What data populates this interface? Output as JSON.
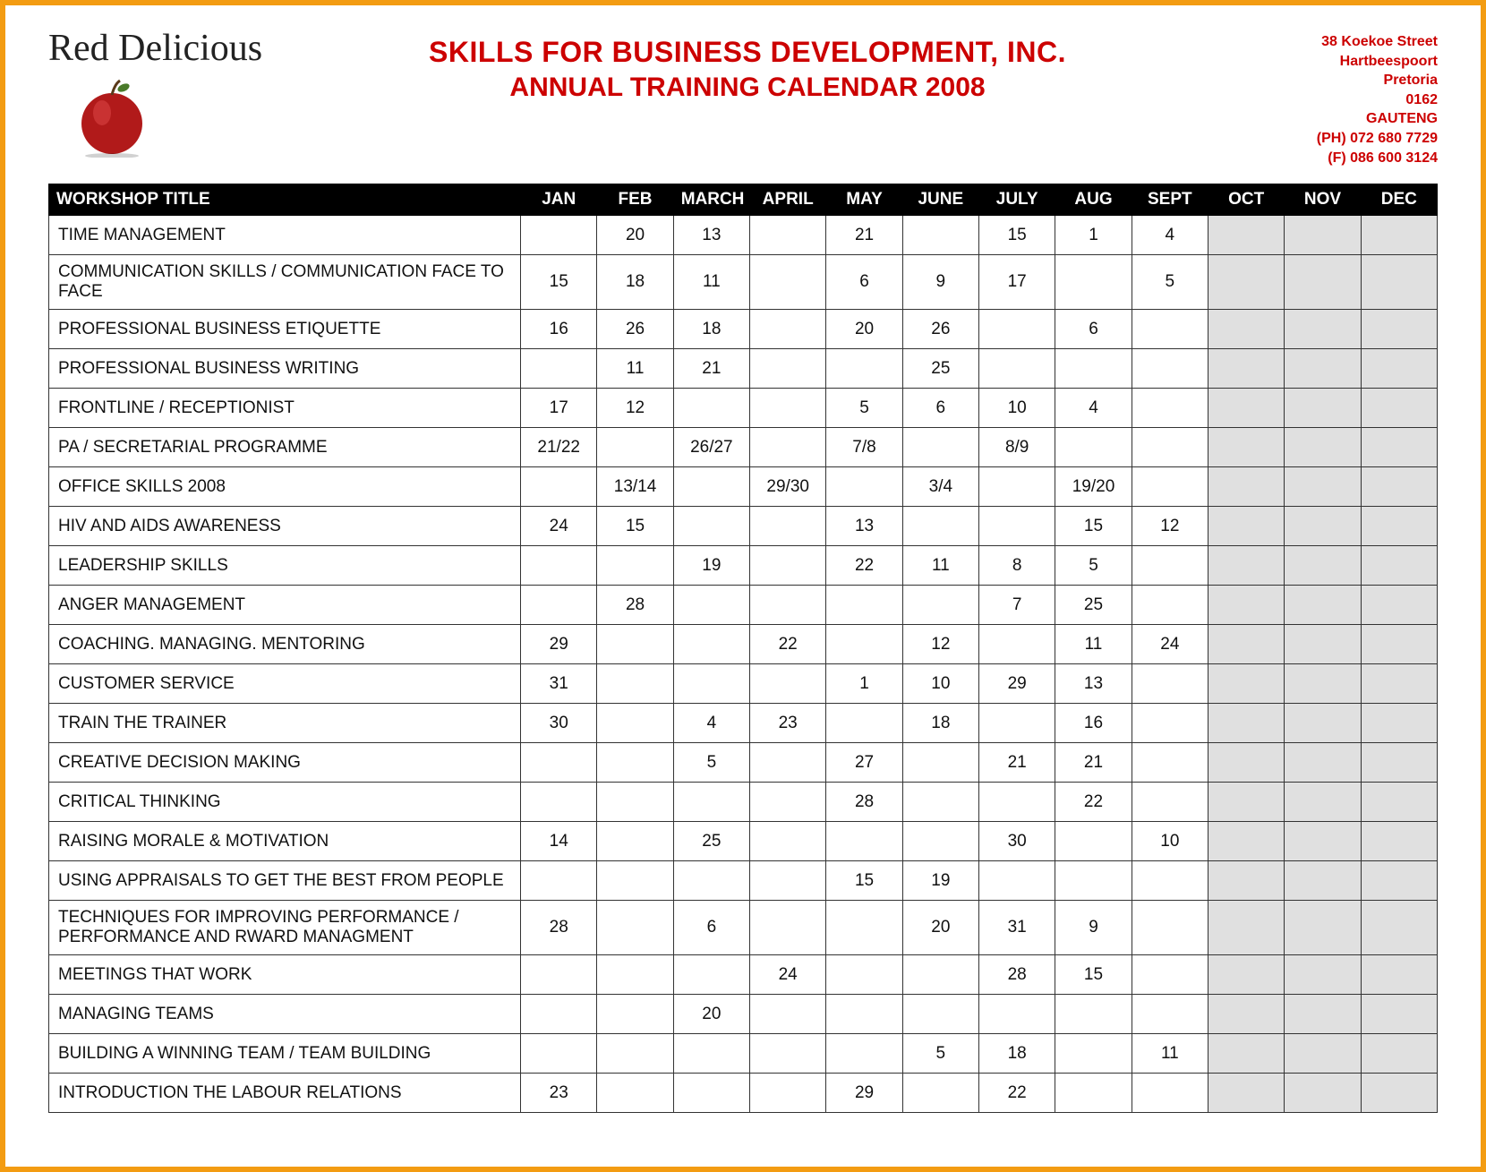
{
  "brand": "Red Delicious",
  "header": {
    "title_line1": "SKILLS FOR BUSINESS DEVELOPMENT, INC.",
    "title_line2": "ANNUAL TRAINING CALENDAR 2008",
    "title_color": "#cc0000"
  },
  "address": {
    "line1": "38 Koekoe Street",
    "line2": "Hartbeespoort",
    "line3": "Pretoria",
    "line4": "0162",
    "line5": "GAUTENG",
    "line6": "(PH) 072 680 7729",
    "line7": "(F) 086 600 3124"
  },
  "table": {
    "header_title": "WORKSHOP TITLE",
    "months": [
      "JAN",
      "FEB",
      "MARCH",
      "APRIL",
      "MAY",
      "JUNE",
      "JULY",
      "AUG",
      "SEPT",
      "OCT",
      "NOV",
      "DEC"
    ],
    "blank_months": [
      9,
      10,
      11
    ],
    "header_bg": "#000000",
    "header_fg": "#ffffff",
    "blank_bg": "#e0e0e0",
    "border_color": "#333333",
    "rows": [
      {
        "title": "TIME MANAGEMENT",
        "cells": [
          "",
          "20",
          "13",
          "",
          "21",
          "",
          "15",
          "1",
          "4",
          "",
          "",
          ""
        ]
      },
      {
        "title": "COMMUNICATION SKILLS / COMMUNICATION FACE TO FACE",
        "cells": [
          "15",
          "18",
          "11",
          "",
          "6",
          "9",
          "17",
          "",
          "5",
          "",
          "",
          ""
        ]
      },
      {
        "title": "PROFESSIONAL BUSINESS ETIQUETTE",
        "cells": [
          "16",
          "26",
          "18",
          "",
          "20",
          "26",
          "",
          "6",
          "",
          "",
          "",
          ""
        ]
      },
      {
        "title": "PROFESSIONAL BUSINESS WRITING",
        "cells": [
          "",
          "11",
          "21",
          "",
          "",
          "25",
          "",
          "",
          "",
          "",
          "",
          ""
        ]
      },
      {
        "title": "FRONTLINE / RECEPTIONIST",
        "cells": [
          "17",
          "12",
          "",
          "",
          "5",
          "6",
          "10",
          "4",
          "",
          "",
          "",
          ""
        ]
      },
      {
        "title": "PA / SECRETARIAL PROGRAMME",
        "cells": [
          "21/22",
          "",
          "26/27",
          "",
          "7/8",
          "",
          "8/9",
          "",
          "",
          "",
          "",
          ""
        ]
      },
      {
        "title": "OFFICE SKILLS 2008",
        "cells": [
          "",
          "13/14",
          "",
          "29/30",
          "",
          "3/4",
          "",
          "19/20",
          "",
          "",
          "",
          ""
        ]
      },
      {
        "title": "HIV AND AIDS AWARENESS",
        "cells": [
          "24",
          "15",
          "",
          "",
          "13",
          "",
          "",
          "15",
          "12",
          "",
          "",
          ""
        ]
      },
      {
        "title": "LEADERSHIP SKILLS",
        "cells": [
          "",
          "",
          "19",
          "",
          "22",
          "11",
          "8",
          "5",
          "",
          "",
          "",
          ""
        ]
      },
      {
        "title": "ANGER MANAGEMENT",
        "cells": [
          "",
          "28",
          "",
          "",
          "",
          "",
          "7",
          "25",
          "",
          "",
          "",
          ""
        ]
      },
      {
        "title": "COACHING. MANAGING. MENTORING",
        "cells": [
          "29",
          "",
          "",
          "22",
          "",
          "12",
          "",
          "11",
          "24",
          "",
          "",
          ""
        ]
      },
      {
        "title": "CUSTOMER SERVICE",
        "cells": [
          "31",
          "",
          "",
          "",
          "1",
          "10",
          "29",
          "13",
          "",
          "",
          "",
          ""
        ]
      },
      {
        "title": "TRAIN THE TRAINER",
        "cells": [
          "30",
          "",
          "4",
          "23",
          "",
          "18",
          "",
          "16",
          "",
          "",
          "",
          ""
        ]
      },
      {
        "title": "CREATIVE DECISION MAKING",
        "cells": [
          "",
          "",
          "5",
          "",
          "27",
          "",
          "21",
          "21",
          "",
          "",
          "",
          ""
        ]
      },
      {
        "title": "CRITICAL THINKING",
        "cells": [
          "",
          "",
          "",
          "",
          "28",
          "",
          "",
          "22",
          "",
          "",
          "",
          ""
        ]
      },
      {
        "title": "RAISING MORALE & MOTIVATION",
        "cells": [
          "14",
          "",
          "25",
          "",
          "",
          "",
          "30",
          "",
          "10",
          "",
          "",
          ""
        ]
      },
      {
        "title": "USING APPRAISALS TO GET THE BEST FROM PEOPLE",
        "cells": [
          "",
          "",
          "",
          "",
          "15",
          "19",
          "",
          "",
          "",
          "",
          "",
          ""
        ]
      },
      {
        "title": "TECHNIQUES FOR IMPROVING PERFORMANCE / PERFORMANCE AND RWARD MANAGMENT",
        "cells": [
          "28",
          "",
          "6",
          "",
          "",
          "20",
          "31",
          "9",
          "",
          "",
          "",
          ""
        ]
      },
      {
        "title": "MEETINGS THAT WORK",
        "cells": [
          "",
          "",
          "",
          "24",
          "",
          "",
          "28",
          "15",
          "",
          "",
          "",
          ""
        ]
      },
      {
        "title": "MANAGING TEAMS",
        "cells": [
          "",
          "",
          "20",
          "",
          "",
          "",
          "",
          "",
          "",
          "",
          "",
          ""
        ]
      },
      {
        "title": "BUILDING A WINNING TEAM / TEAM BUILDING",
        "cells": [
          "",
          "",
          "",
          "",
          "",
          "5",
          "18",
          "",
          "11",
          "",
          "",
          ""
        ]
      },
      {
        "title": "INTRODUCTION THE LABOUR RELATIONS",
        "cells": [
          "23",
          "",
          "",
          "",
          "29",
          "",
          "22",
          "",
          "",
          "",
          "",
          ""
        ]
      }
    ]
  },
  "frame_border_color": "#f39c12"
}
